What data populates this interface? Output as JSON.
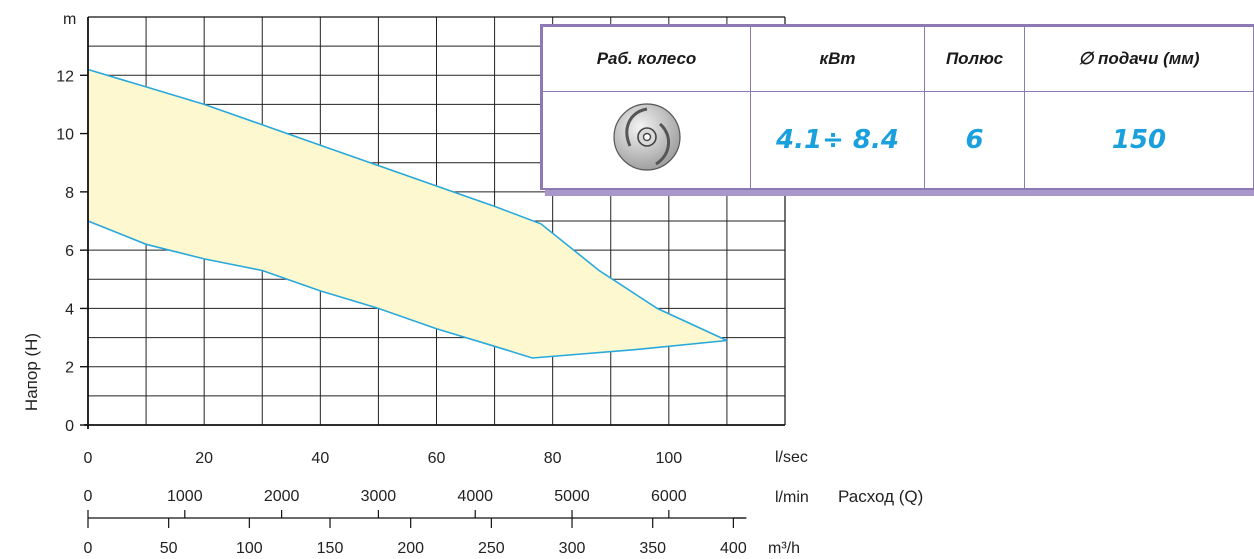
{
  "chart_data": {
    "type": "area",
    "title": "",
    "ylabel": "Напор (H)",
    "y_unit": "m",
    "ylim": [
      0,
      14
    ],
    "y_ticks": [
      0,
      2,
      4,
      6,
      8,
      10,
      12
    ],
    "x_axes": [
      {
        "unit": "l/sec",
        "xlim": [
          0,
          120
        ],
        "ticks": [
          0,
          20,
          40,
          60,
          80,
          100
        ],
        "tick_labels": [
          "0",
          "20",
          "40",
          "60",
          "80",
          "100"
        ]
      },
      {
        "unit": "l/min",
        "ticks": [
          0,
          1000,
          2000,
          3000,
          4000,
          5000,
          6000
        ],
        "tick_labels": [
          "0",
          "1000",
          "2000",
          "3000",
          "4000",
          "5000",
          "6000"
        ]
      },
      {
        "unit": "m³/h",
        "ticks": [
          0,
          50,
          100,
          150,
          200,
          250,
          300,
          350,
          400
        ],
        "tick_labels": [
          "0",
          "50",
          "100",
          "150",
          "200",
          "250",
          "300",
          "350",
          "400"
        ]
      }
    ],
    "xlabel": "Расход (Q)",
    "grid": true,
    "colors": {
      "line": "#29a8dc",
      "fill": "#fdf8cf",
      "grid": "#222222"
    },
    "upper_curve": [
      [
        0,
        12.2
      ],
      [
        10,
        11.6
      ],
      [
        20,
        11.0
      ],
      [
        30,
        10.3
      ],
      [
        40,
        9.6
      ],
      [
        50,
        8.9
      ],
      [
        60,
        8.2
      ],
      [
        70,
        7.5
      ],
      [
        78,
        6.9
      ],
      [
        88,
        5.3
      ],
      [
        98,
        4.0
      ],
      [
        110,
        2.9
      ]
    ],
    "lower_curve": [
      [
        0,
        7.0
      ],
      [
        10,
        6.2
      ],
      [
        20,
        5.7
      ],
      [
        30,
        5.3
      ],
      [
        40,
        4.6
      ],
      [
        50,
        4.0
      ],
      [
        60,
        3.3
      ],
      [
        70,
        2.7
      ],
      [
        76.5,
        2.3
      ],
      [
        95,
        2.6
      ],
      [
        110,
        2.9
      ]
    ]
  },
  "spec_table": {
    "headers": [
      "Раб. колесо",
      "кВт",
      "Полюс",
      "∅ подачи (мм)"
    ],
    "impeller_icon": "impeller-icon",
    "power": "4.1÷ 8.4",
    "poles": "6",
    "outlet": "150"
  }
}
